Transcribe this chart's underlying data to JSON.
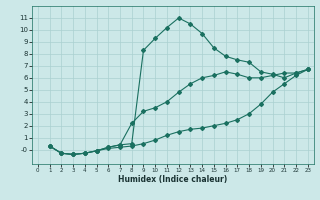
{
  "xlabel": "Humidex (Indice chaleur)",
  "background_color": "#cce8e8",
  "line_color": "#1a7060",
  "xlim": [
    -0.5,
    23.5
  ],
  "ylim": [
    -1.2,
    12
  ],
  "xticks": [
    0,
    1,
    2,
    3,
    4,
    5,
    6,
    7,
    8,
    9,
    10,
    11,
    12,
    13,
    14,
    15,
    16,
    17,
    18,
    19,
    20,
    21,
    22,
    23
  ],
  "yticks": [
    0,
    1,
    2,
    3,
    4,
    5,
    6,
    7,
    8,
    9,
    10,
    11
  ],
  "ytick_labels": [
    "-0",
    "1",
    "2",
    "3",
    "4",
    "5",
    "6",
    "7",
    "8",
    "9",
    "10",
    "11"
  ],
  "line1_x": [
    1,
    2,
    3,
    4,
    5,
    6,
    7,
    8,
    9,
    10,
    11,
    12,
    13,
    14,
    15,
    16,
    17,
    18,
    19,
    20,
    21,
    22,
    23
  ],
  "line1_y": [
    0.3,
    -0.3,
    -0.4,
    -0.3,
    -0.1,
    0.1,
    0.2,
    0.3,
    0.5,
    0.8,
    1.2,
    1.5,
    1.7,
    1.8,
    2.0,
    2.2,
    2.5,
    3.0,
    3.8,
    4.8,
    5.5,
    6.2,
    6.7
  ],
  "line2_x": [
    1,
    2,
    3,
    4,
    5,
    6,
    7,
    8,
    9,
    10,
    11,
    12,
    13,
    14,
    15,
    16,
    17,
    18,
    19,
    20,
    21,
    22,
    23
  ],
  "line2_y": [
    0.3,
    -0.3,
    -0.4,
    -0.3,
    -0.1,
    0.2,
    0.4,
    0.5,
    8.3,
    9.3,
    10.2,
    11.0,
    10.5,
    9.7,
    8.5,
    7.8,
    7.5,
    7.3,
    6.5,
    6.3,
    6.0,
    6.4,
    6.7
  ],
  "line3_x": [
    1,
    2,
    3,
    4,
    5,
    6,
    7,
    8,
    9,
    10,
    11,
    12,
    13,
    14,
    15,
    16,
    17,
    18,
    19,
    20,
    21,
    22,
    23
  ],
  "line3_y": [
    0.3,
    -0.3,
    -0.4,
    -0.3,
    -0.1,
    0.2,
    0.4,
    2.2,
    3.2,
    3.5,
    4.0,
    4.8,
    5.5,
    6.0,
    6.2,
    6.5,
    6.3,
    6.0,
    6.0,
    6.2,
    6.4,
    6.4,
    6.7
  ],
  "grid_color": "#aad0d0",
  "marker": "D",
  "markersize": 2.0,
  "linewidth": 0.8
}
